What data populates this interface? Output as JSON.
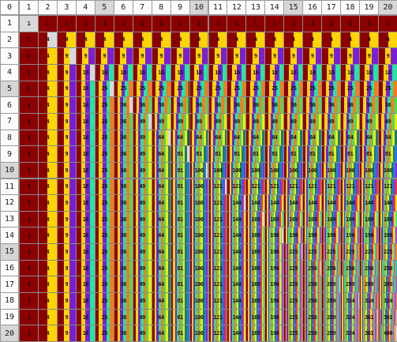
{
  "table": {
    "corner_label": "0",
    "row_count": 20,
    "col_count": 20,
    "highlight_indices": [
      5,
      10,
      15,
      20
    ],
    "cell_colors": {
      "1": "#8b0000",
      "4": "#ffd400",
      "9": "#7a1fd6",
      "16": "#23e6a0",
      "25": "#ff7a1a",
      "36": "#5ad35a",
      "49": "#e8f000",
      "64": "#1c7a7a",
      "81": "#1e7ce6",
      "100": "#8a2be2",
      "121": "#ff3a1a",
      "144": "#ffe01a",
      "169": "#3df080",
      "196": "#b03fe0",
      "225": "#ff8a1a",
      "256": "#22c4c4",
      "289": "#c040c0",
      "324": "#ff9a3a",
      "361": "#c0c0c0",
      "400": "#7a7a7a"
    },
    "diag_light": "#d9d9d9"
  }
}
